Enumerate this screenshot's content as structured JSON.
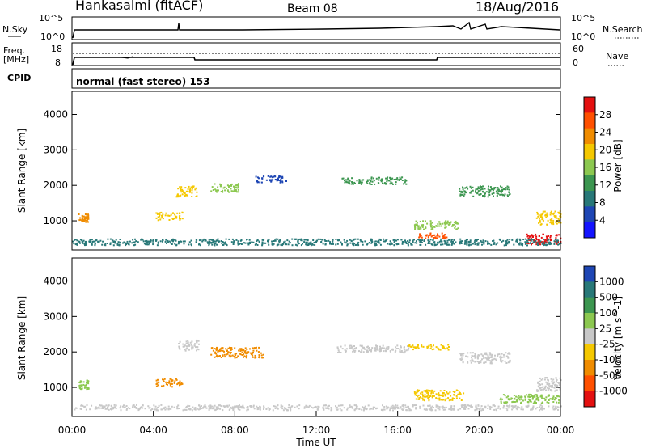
{
  "header": {
    "station": "Hankasalmi (fitACF)",
    "beam": "Beam 08",
    "date": "18/Aug/2016"
  },
  "top_panels": {
    "sky_label": "N.Sky",
    "sky_tick_hi": "10^5",
    "sky_tick_lo": "10^0",
    "search_label": "N.Search",
    "search_tick_hi": "10^5",
    "search_tick_lo": "10^0",
    "freq_label_1": "Freq.",
    "freq_label_2": "[MHz]",
    "freq_tick_hi": "18",
    "freq_tick_lo": "8",
    "nave_label": "Nave",
    "nave_tick_hi": "60",
    "nave_tick_lo": "0",
    "cpid_label": "CPID",
    "cpid_text": "normal (fast stereo) 153"
  },
  "chart_data": [
    {
      "type": "heatmap",
      "panel": "power",
      "ylabel": "Slant Range [km]",
      "xlabel": "",
      "yticks": [
        1000,
        2000,
        3000,
        4000
      ],
      "ylim": [
        180,
        4650
      ],
      "xlim_hours": [
        0,
        24
      ],
      "colorbar_label": "Power [dB]",
      "colorbar_ticks": [
        "28",
        "24",
        "20",
        "16",
        "12",
        "8",
        "4"
      ],
      "colorbar_colors": [
        "#e41010",
        "#ff5000",
        "#f08c00",
        "#f5c800",
        "#8cc850",
        "#3c9650",
        "#287878",
        "#1e46b4",
        "#1414ff"
      ],
      "blobs": [
        {
          "t": 0.3,
          "r": 1100,
          "w": 0.5,
          "h": 250,
          "c": "#f08c00"
        },
        {
          "t": 4.1,
          "r": 1150,
          "w": 1.3,
          "h": 220,
          "c": "#f5c800"
        },
        {
          "t": 5.1,
          "r": 1850,
          "w": 1.0,
          "h": 300,
          "c": "#f5c800"
        },
        {
          "t": 6.8,
          "r": 1950,
          "w": 1.4,
          "h": 250,
          "c": "#8cc850"
        },
        {
          "t": 9.0,
          "r": 2200,
          "w": 1.5,
          "h": 200,
          "c": "#1e46b4"
        },
        {
          "t": 13.2,
          "r": 2150,
          "w": 3.2,
          "h": 200,
          "c": "#3c9650"
        },
        {
          "t": 16.8,
          "r": 900,
          "w": 2.2,
          "h": 250,
          "c": "#8cc850"
        },
        {
          "t": 17.0,
          "r": 600,
          "w": 1.4,
          "h": 150,
          "c": "#ff5000"
        },
        {
          "t": 19.0,
          "r": 1850,
          "w": 2.5,
          "h": 300,
          "c": "#3c9650"
        },
        {
          "t": 22.3,
          "r": 500,
          "w": 3.0,
          "h": 300,
          "c": "#e41010"
        },
        {
          "t": 22.8,
          "r": 1100,
          "w": 1.8,
          "h": 400,
          "c": "#f5c800"
        },
        {
          "t": 0.0,
          "r": 420,
          "w": 24.0,
          "h": 180,
          "c": "#287878"
        }
      ]
    },
    {
      "type": "heatmap",
      "panel": "velocity",
      "ylabel": "Slant Range [km]",
      "xlabel": "Time UT",
      "yticks": [
        1000,
        2000,
        3000,
        4000
      ],
      "ylim": [
        180,
        4650
      ],
      "xlim_hours": [
        0,
        24
      ],
      "xticks": [
        "00:00",
        "04:00",
        "08:00",
        "12:00",
        "16:00",
        "20:00",
        "00:00"
      ],
      "colorbar_label": "Velocity [m s^-1]",
      "colorbar_ticks": [
        "1000",
        "500",
        "100",
        "25",
        "-25",
        "-100",
        "-500",
        "-1000"
      ],
      "colorbar_colors": [
        "#1e46b4",
        "#287878",
        "#3c9650",
        "#8cc850",
        "#c8c8c8",
        "#f5c800",
        "#f08c00",
        "#ff5000",
        "#e41010"
      ],
      "blobs": [
        {
          "t": 0.3,
          "r": 1100,
          "w": 0.5,
          "h": 250,
          "c": "#8cc850"
        },
        {
          "t": 4.1,
          "r": 1150,
          "w": 1.3,
          "h": 220,
          "c": "#f08c00"
        },
        {
          "t": 5.2,
          "r": 2200,
          "w": 1.0,
          "h": 300,
          "c": "#c8c8c8"
        },
        {
          "t": 6.8,
          "r": 2000,
          "w": 2.6,
          "h": 300,
          "c": "#f08c00"
        },
        {
          "t": 13.0,
          "r": 2100,
          "w": 3.5,
          "h": 200,
          "c": "#c8c8c8"
        },
        {
          "t": 16.8,
          "r": 800,
          "w": 2.4,
          "h": 300,
          "c": "#f5c800"
        },
        {
          "t": 16.5,
          "r": 2150,
          "w": 2.0,
          "h": 150,
          "c": "#f5c800"
        },
        {
          "t": 19.0,
          "r": 1850,
          "w": 2.5,
          "h": 300,
          "c": "#c8c8c8"
        },
        {
          "t": 21.0,
          "r": 700,
          "w": 3.0,
          "h": 250,
          "c": "#8cc850"
        },
        {
          "t": 22.8,
          "r": 1100,
          "w": 1.8,
          "h": 400,
          "c": "#c8c8c8"
        },
        {
          "t": 0.0,
          "r": 450,
          "w": 24.0,
          "h": 150,
          "c": "#c8c8c8"
        }
      ]
    }
  ]
}
